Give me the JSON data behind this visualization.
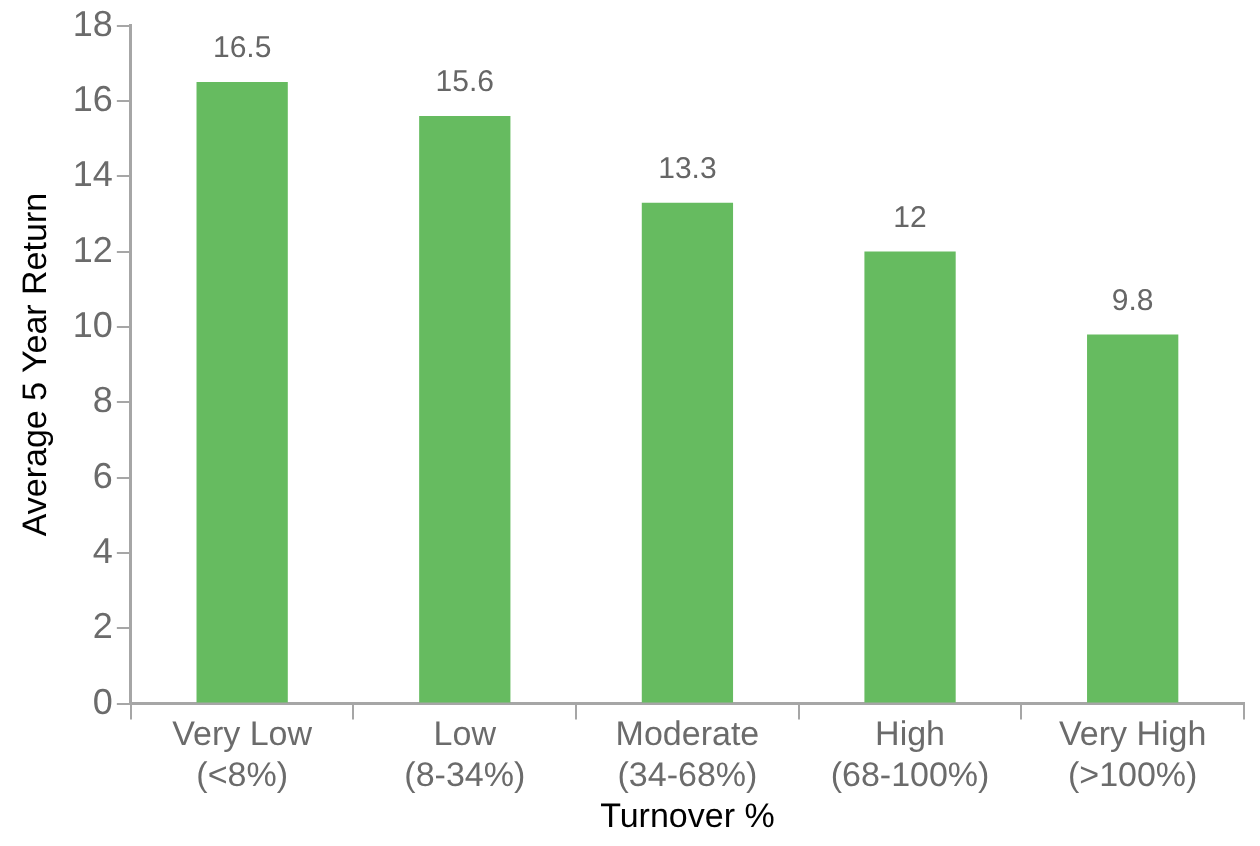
{
  "chart_data": {
    "type": "bar",
    "xlabel": "Turnover %",
    "ylabel": "Average 5 Year Return",
    "categories": [
      "Very Low\n(<8%)",
      "Low\n(8-34%)",
      "Moderate\n(34-68%)",
      "High\n(68-100%)",
      "Very High\n(>100%)"
    ],
    "values": [
      16.5,
      15.6,
      13.3,
      12,
      9.8
    ],
    "color": "#66bb60",
    "ylim": [
      0,
      18
    ],
    "yticks": [
      0,
      2,
      4,
      6,
      8,
      10,
      12,
      14,
      16,
      18
    ],
    "grid": false,
    "legend": false,
    "data_labels": true
  }
}
